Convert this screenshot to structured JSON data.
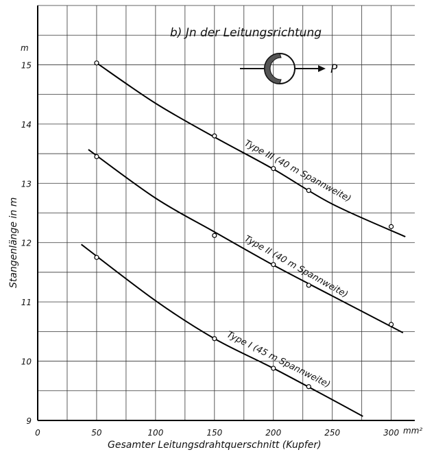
{
  "chart_data": {
    "type": "line",
    "title": "b) Jn der Leitungsrichtung",
    "xlabel": "Gesamter Leitungsdrahtquerschnitt (Kupfer)",
    "ylabel": "Stangenlänge in m",
    "x_unit": "mm²",
    "y_unit": "m",
    "xlim": [
      0,
      320
    ],
    "ylim": [
      9,
      16
    ],
    "x_ticks": [
      "0",
      "50",
      "100",
      "150",
      "200",
      "250",
      "300"
    ],
    "y_ticks": [
      "9",
      "10",
      "11",
      "12",
      "13",
      "14",
      "15"
    ],
    "grid": true,
    "force_label": "P",
    "series": [
      {
        "name": "Type III (40 m Spannweite)",
        "points": [
          [
            50,
            15.03
          ],
          [
            150,
            13.8
          ],
          [
            200,
            13.25
          ],
          [
            230,
            12.88
          ],
          [
            300,
            12.27
          ]
        ],
        "curve": [
          [
            50,
            15.03
          ],
          [
            100,
            14.35
          ],
          [
            150,
            13.78
          ],
          [
            200,
            13.24
          ],
          [
            250,
            12.65
          ],
          [
            312,
            12.1
          ]
        ]
      },
      {
        "name": "Type II (40 m Spannweite)",
        "points": [
          [
            50,
            13.45
          ],
          [
            150,
            12.12
          ],
          [
            200,
            11.63
          ],
          [
            230,
            11.28
          ],
          [
            300,
            10.62
          ]
        ],
        "curve": [
          [
            43,
            13.57
          ],
          [
            100,
            12.75
          ],
          [
            150,
            12.18
          ],
          [
            200,
            11.62
          ],
          [
            250,
            11.1
          ],
          [
            310,
            10.48
          ]
        ]
      },
      {
        "name": "Type I (45 m Spannweite)",
        "points": [
          [
            50,
            11.75
          ],
          [
            150,
            10.38
          ],
          [
            200,
            9.88
          ],
          [
            230,
            9.57
          ]
        ],
        "curve": [
          [
            37,
            11.97
          ],
          [
            100,
            11.02
          ],
          [
            150,
            10.38
          ],
          [
            200,
            9.88
          ],
          [
            250,
            9.35
          ],
          [
            276,
            9.07
          ]
        ]
      }
    ]
  }
}
